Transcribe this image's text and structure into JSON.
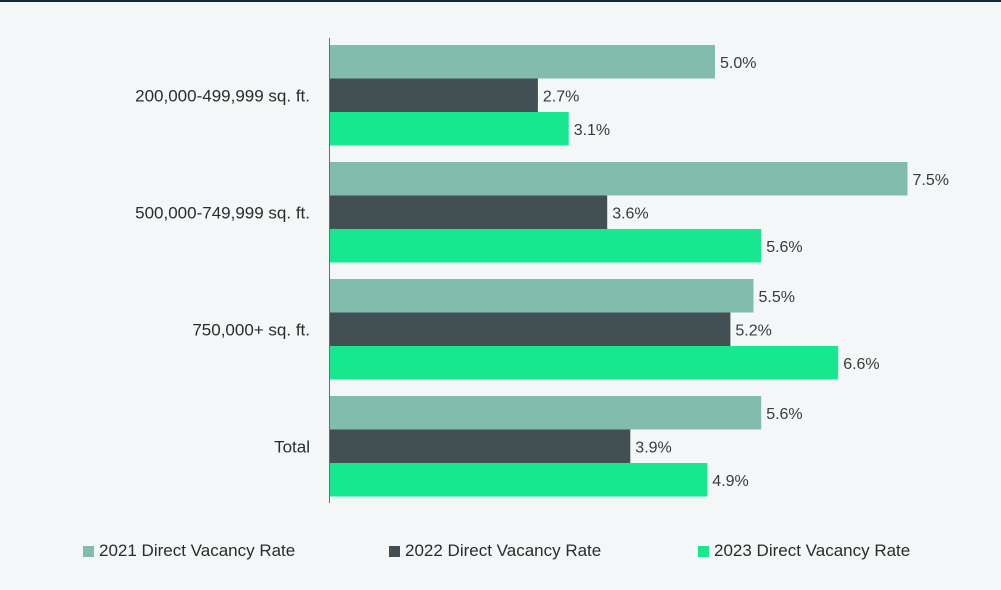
{
  "chart_data": {
    "type": "bar",
    "orientation": "horizontal",
    "categories": [
      "200,000-499,999 sq. ft.",
      "500,000-749,999 sq. ft.",
      "750,000+ sq. ft.",
      "Total"
    ],
    "series": [
      {
        "name": "2021 Direct Vacancy Rate",
        "color": "#82bcac",
        "values": [
          5.0,
          7.5,
          5.5,
          5.6
        ],
        "labels": [
          "5.0%",
          "7.5%",
          "5.5%",
          "5.6%"
        ]
      },
      {
        "name": "2022 Direct Vacancy Rate",
        "color": "#435053",
        "values": [
          2.7,
          3.6,
          5.2,
          3.9
        ],
        "labels": [
          "2.7%",
          "3.6%",
          "5.2%",
          "3.9%"
        ]
      },
      {
        "name": "2023 Direct Vacancy Rate",
        "color": "#17e88f",
        "values": [
          3.1,
          5.6,
          6.6,
          4.9
        ],
        "labels": [
          "3.1%",
          "5.6%",
          "6.6%",
          "4.9%"
        ]
      }
    ],
    "title": "",
    "xlabel": "",
    "ylabel": "",
    "xlim": [
      0,
      8
    ],
    "grid": false,
    "legend": "bottom"
  }
}
